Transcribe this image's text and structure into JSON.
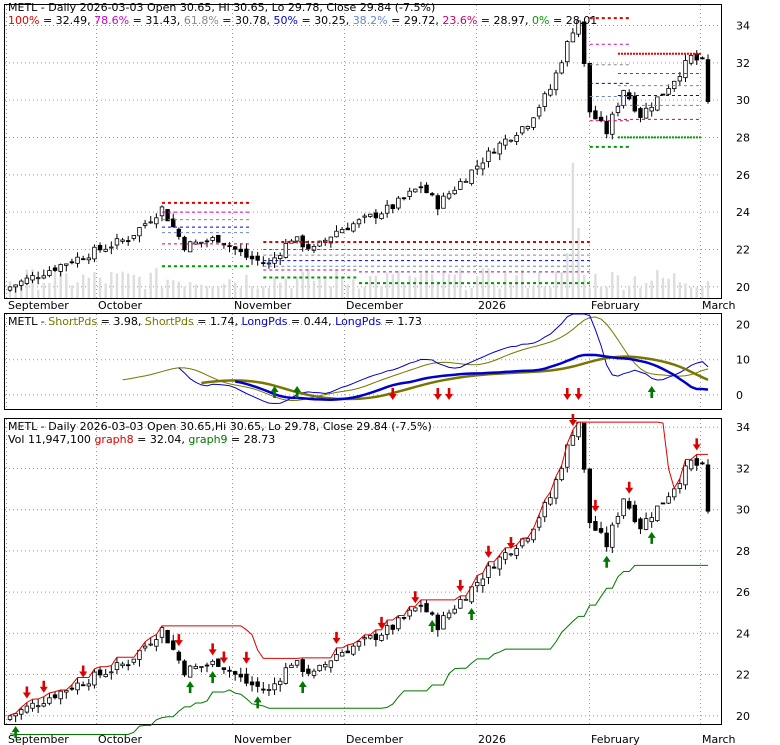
{
  "colors": {
    "red": "#dd0000",
    "green": "#007700",
    "fib_78": "#cc00cc",
    "fib_61": "#888888",
    "fib_50": "#0000cc",
    "fib_38": "#6688cc",
    "fib_23": "#cc0066",
    "fib_0": "#009900",
    "short": "#777700",
    "long": "#0000cc",
    "volume": "#dddddd",
    "graph8": "#dd0000",
    "graph9": "#007700"
  },
  "header": {
    "panel1": {
      "title": "METL - Daily 2026-03-03 Open 30.65, Hi 30.65, Lo 29.78, Close 29.84 (-7.5%)",
      "fib": [
        {
          "label": "100%",
          "value": "32.49"
        },
        {
          "label": "78.6%",
          "value": "31.43"
        },
        {
          "label": "61.8%",
          "value": "30.78"
        },
        {
          "label": "50%",
          "value": "30.25"
        },
        {
          "label": "38.2%",
          "value": "29.72"
        },
        {
          "label": "23.6%",
          "value": "28.97"
        },
        {
          "label": "0%",
          "value": "28.01"
        }
      ]
    },
    "panel2": {
      "prefix": "METL - ",
      "short1_label": "ShortPds",
      "short1_value": "3.98",
      "short2_label": "ShortPds",
      "short2_value": "1.74",
      "long1_label": "LongPds",
      "long1_value": "0.44",
      "long2_label": "LongPds",
      "long2_value": "1.73"
    },
    "panel3": {
      "title": "METL - Daily 2026-03-03 Open 30.65,Hi 30.65, Lo 29.78, Close 29.84 (-7.5%)",
      "vol_label": "Vol 11,947,100",
      "graph8_label": "graph8",
      "graph8_value": "32.04",
      "graph9_label": "graph9",
      "graph9_value": "28.73"
    }
  },
  "chart_data": [
    {
      "type": "candlestick",
      "name": "price_panel",
      "x_labels": [
        "September",
        "October",
        "November",
        "December",
        "2026",
        "February",
        "March"
      ],
      "y_ticks": [
        20,
        22,
        24,
        26,
        28,
        30,
        32,
        34
      ],
      "ylim": [
        19.4,
        35.1
      ],
      "fib_levels": [
        32.49,
        31.43,
        30.78,
        30.25,
        29.72,
        28.97,
        28.01
      ],
      "grid": true
    },
    {
      "type": "line",
      "name": "indicator_panel",
      "y_ticks": [
        0,
        10,
        20
      ],
      "ylim": [
        -4,
        23
      ],
      "grid": true
    },
    {
      "type": "candlestick",
      "name": "swing_panel",
      "x_labels": [
        "September",
        "October",
        "November",
        "December",
        "2026",
        "February",
        "March"
      ],
      "y_ticks": [
        20,
        22,
        24,
        26,
        28,
        30,
        32,
        34
      ],
      "ylim": [
        19.6,
        34.4
      ],
      "grid": true
    }
  ]
}
